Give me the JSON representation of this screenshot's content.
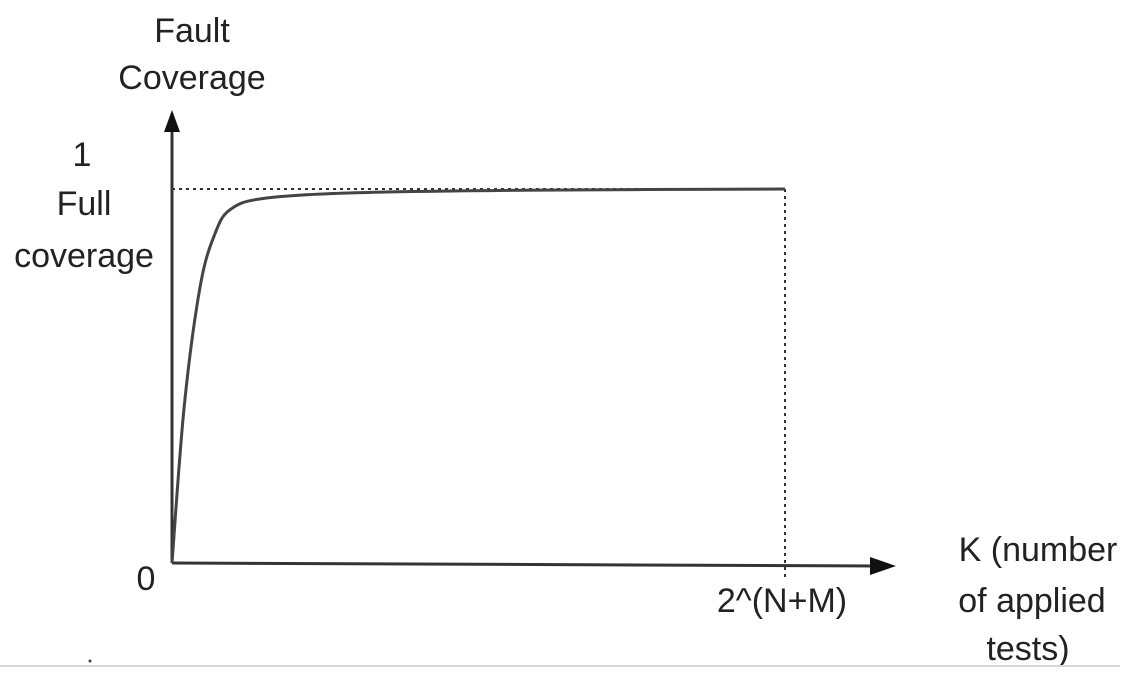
{
  "chart_data": {
    "type": "line",
    "title": "",
    "ylabel": [
      "Fault",
      "Coverage"
    ],
    "xlabel": [
      "K (number",
      "of applied",
      "tests)"
    ],
    "y_ticks": [
      {
        "value": 0,
        "label": "0"
      },
      {
        "value": 1,
        "label": "1"
      }
    ],
    "y_annotation": [
      "Full",
      "coverage"
    ],
    "x_ticks": [
      {
        "value": 1,
        "label": "2^(N+M)"
      }
    ],
    "x_unit_note": "x measured as fraction of 2^(N+M)",
    "xlim": [
      0,
      1
    ],
    "ylim": [
      0,
      1
    ],
    "grid": false,
    "reference_lines": [
      {
        "orientation": "horizontal",
        "value": 1,
        "style": "dotted"
      },
      {
        "orientation": "vertical",
        "value": 1,
        "style": "dotted"
      }
    ],
    "series": [
      {
        "x": [
          0,
          0.02,
          0.046,
          0.07,
          0.095,
          0.15,
          0.3,
          0.6,
          1
        ],
        "y": [
          0,
          0.42,
          0.74,
          0.88,
          0.945,
          0.975,
          0.99,
          0.997,
          1
        ]
      }
    ],
    "colors": {
      "line": "#444444",
      "axis": "#222222"
    }
  }
}
